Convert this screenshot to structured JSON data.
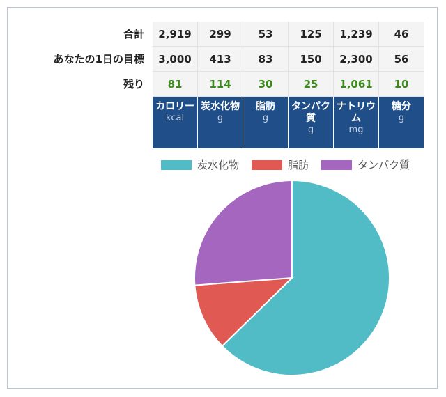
{
  "table": {
    "rows": [
      {
        "label": "合計",
        "values": [
          "2,919",
          "299",
          "53",
          "125",
          "1,239",
          "46"
        ]
      },
      {
        "label": "あなたの1日の目標",
        "values": [
          "3,000",
          "413",
          "83",
          "150",
          "2,300",
          "56"
        ]
      },
      {
        "label": "残り",
        "values": [
          "81",
          "114",
          "30",
          "25",
          "1,061",
          "10"
        ]
      }
    ],
    "headers": [
      {
        "name": "カロリー",
        "unit": "kcal"
      },
      {
        "name": "炭水化物",
        "unit": "g"
      },
      {
        "name": "脂肪",
        "unit": "g"
      },
      {
        "name": "タンパク質",
        "unit": "g"
      },
      {
        "name": "ナトリウム",
        "unit": "mg"
      },
      {
        "name": "糖分",
        "unit": "g"
      }
    ]
  },
  "chart_data": {
    "type": "pie",
    "title": "",
    "legend_position": "top-right",
    "slices": [
      {
        "name": "炭水化物",
        "value": 299,
        "color": "#52bcc6"
      },
      {
        "name": "脂肪",
        "value": 53,
        "color": "#e05a53"
      },
      {
        "name": "タンパク質",
        "value": 125,
        "color": "#a466bf"
      }
    ]
  }
}
